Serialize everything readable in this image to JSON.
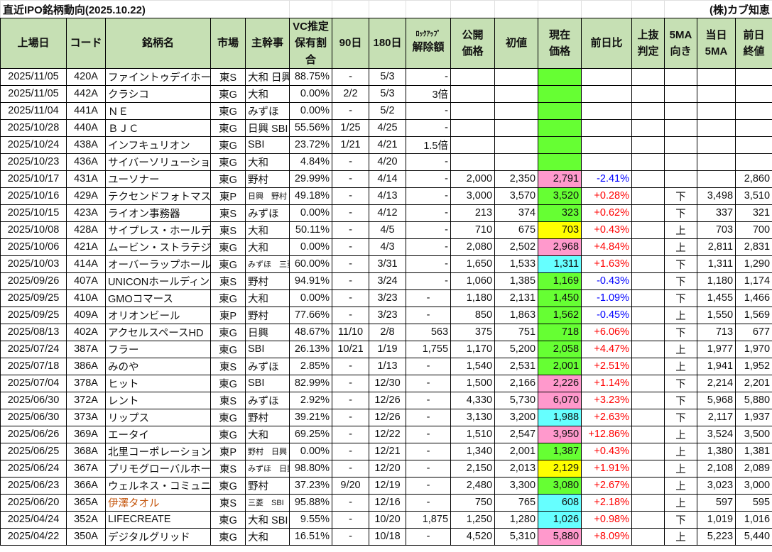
{
  "title": "直近IPO銘柄動向(2025.10.22)",
  "company": "(株)カブ知恵",
  "colors": {
    "header": "#c6e0b4",
    "green": "#66ff33",
    "pink": "#ff99cc",
    "cyan": "#66ffff",
    "yellow": "#ffff00",
    "positive": "#ff0000",
    "negative": "#0000ff",
    "name_highlight": "#c65911"
  },
  "headers": [
    [
      "上場日"
    ],
    [
      "コード"
    ],
    [
      "銘柄名"
    ],
    [
      "市場"
    ],
    [
      "主幹事"
    ],
    [
      "VC推定",
      "保有割合"
    ],
    [
      "90日"
    ],
    [
      "180日"
    ],
    [
      "ﾛｯｸｱｯﾌﾟ",
      "解除額"
    ],
    [
      "公開",
      "価格"
    ],
    [
      "初値"
    ],
    [
      "現在",
      "価格"
    ],
    [
      "前日比"
    ],
    [
      "上抜",
      "判定"
    ],
    [
      "5MA",
      "向き"
    ],
    [
      "当日",
      "5MA"
    ],
    [
      "前日",
      "終値"
    ]
  ],
  "rows": [
    {
      "date": "2025/11/05",
      "code": "420A",
      "name": "ファイントゥデイホールディングス",
      "market": "東S",
      "uw": "大和 日興",
      "vc": "88.75%",
      "d90": "-",
      "d180": "5/3",
      "lock": "-",
      "ipo": "",
      "first": "",
      "price": "",
      "price_fill": "green",
      "chg": "",
      "cross": "",
      "ma_dir": "",
      "ma5": "",
      "prev": ""
    },
    {
      "date": "2025/11/05",
      "code": "442A",
      "name": "クラシコ",
      "market": "東G",
      "uw": "大和",
      "vc": "0.00%",
      "d90": "2/2",
      "d180": "5/3",
      "lock": "3倍",
      "ipo": "",
      "first": "",
      "price": "",
      "price_fill": "green",
      "chg": "",
      "cross": "",
      "ma_dir": "",
      "ma5": "",
      "prev": ""
    },
    {
      "date": "2025/11/04",
      "code": "441A",
      "name": "ＮＥ",
      "market": "東G",
      "uw": "みずほ",
      "vc": "0.00%",
      "d90": "-",
      "d180": "5/2",
      "lock": "-",
      "ipo": "",
      "first": "",
      "price": "",
      "price_fill": "green",
      "chg": "",
      "cross": "",
      "ma_dir": "",
      "ma5": "",
      "prev": ""
    },
    {
      "date": "2025/10/28",
      "code": "440A",
      "name": "ＢＪＣ",
      "market": "東G",
      "uw": "日興 SBI",
      "vc": "55.56%",
      "d90": "1/25",
      "d180": "4/25",
      "lock": "-",
      "ipo": "",
      "first": "",
      "price": "",
      "price_fill": "green",
      "chg": "",
      "cross": "",
      "ma_dir": "",
      "ma5": "",
      "prev": ""
    },
    {
      "date": "2025/10/24",
      "code": "438A",
      "name": "インフキュリオン",
      "market": "東G",
      "uw": "SBI",
      "vc": "23.72%",
      "d90": "1/21",
      "d180": "4/21",
      "lock": "1.5倍",
      "ipo": "",
      "first": "",
      "price": "",
      "price_fill": "green",
      "chg": "",
      "cross": "",
      "ma_dir": "",
      "ma5": "",
      "prev": ""
    },
    {
      "date": "2025/10/23",
      "code": "436A",
      "name": "サイバーソリューションズ",
      "market": "東G",
      "uw": "大和",
      "vc": "4.84%",
      "d90": "-",
      "d180": "4/20",
      "lock": "-",
      "ipo": "",
      "first": "",
      "price": "",
      "price_fill": "green",
      "chg": "",
      "cross": "",
      "ma_dir": "",
      "ma5": "",
      "prev": ""
    },
    {
      "date": "2025/10/17",
      "code": "431A",
      "name": "ユーソナー",
      "market": "東G",
      "uw": "野村",
      "vc": "29.99%",
      "d90": "-",
      "d180": "4/14",
      "lock": "-",
      "ipo": "2,000",
      "first": "2,350",
      "price": "2,791",
      "price_fill": "pink",
      "chg": "-2.41%",
      "cross": "",
      "ma_dir": "",
      "ma5": "",
      "prev": "2,860"
    },
    {
      "date": "2025/10/16",
      "code": "429A",
      "name": "テクセンドフォトマスク",
      "market": "東P",
      "uw": "日興　野村",
      "uw_small": true,
      "vc": "49.18%",
      "d90": "-",
      "d180": "4/13",
      "lock": "-",
      "ipo": "3,000",
      "first": "3,570",
      "price": "3,520",
      "price_fill": "green",
      "chg": "+0.28%",
      "cross": "",
      "ma_dir": "下",
      "ma5": "3,498",
      "prev": "3,510"
    },
    {
      "date": "2025/10/15",
      "code": "423A",
      "name": "ライオン事務器",
      "market": "東S",
      "uw": "みずほ",
      "vc": "0.00%",
      "d90": "-",
      "d180": "4/12",
      "lock": "-",
      "ipo": "213",
      "first": "374",
      "price": "323",
      "price_fill": "green",
      "chg": "+0.62%",
      "cross": "",
      "ma_dir": "下",
      "ma5": "337",
      "prev": "321"
    },
    {
      "date": "2025/10/08",
      "code": "428A",
      "name": "サイプレス・ホールディングス",
      "market": "東S",
      "uw": "大和",
      "vc": "50.11%",
      "d90": "-",
      "d180": "4/5",
      "lock": "-",
      "ipo": "710",
      "first": "675",
      "price": "703",
      "price_fill": "yellow",
      "chg": "+0.43%",
      "cross": "",
      "ma_dir": "上",
      "ma5": "703",
      "prev": "700"
    },
    {
      "date": "2025/10/06",
      "code": "421A",
      "name": "ムービン・ストラテジック",
      "market": "東G",
      "uw": "大和",
      "vc": "0.00%",
      "d90": "-",
      "d180": "4/3",
      "lock": "-",
      "ipo": "2,080",
      "first": "2,502",
      "price": "2,968",
      "price_fill": "pink",
      "chg": "+4.84%",
      "cross": "",
      "ma_dir": "上",
      "ma5": "2,811",
      "prev": "2,831"
    },
    {
      "date": "2025/10/03",
      "code": "414A",
      "name": "オーバーラップホールディングス",
      "market": "東G",
      "uw": "みずほ　三菱",
      "uw_small": true,
      "vc": "60.00%",
      "d90": "-",
      "d180": "3/31",
      "lock": "-",
      "ipo": "1,650",
      "first": "1,533",
      "price": "1,311",
      "price_fill": "cyan",
      "chg": "+1.63%",
      "cross": "",
      "ma_dir": "下",
      "ma5": "1,311",
      "prev": "1,290"
    },
    {
      "date": "2025/09/26",
      "code": "407A",
      "name": "UNICONホールディングス",
      "market": "東S",
      "uw": "野村",
      "vc": "94.91%",
      "d90": "-",
      "d180": "3/24",
      "lock": "-",
      "ipo": "1,060",
      "first": "1,385",
      "price": "1,169",
      "price_fill": "green",
      "chg": "-0.43%",
      "cross": "",
      "ma_dir": "下",
      "ma5": "1,180",
      "prev": "1,174"
    },
    {
      "date": "2025/09/25",
      "code": "410A",
      "name": "GMOコマース",
      "market": "東G",
      "uw": "大和",
      "vc": "0.00%",
      "d90": "-",
      "d180": "3/23",
      "lock": "-",
      "ipo": "1,180",
      "first": "2,131",
      "price": "1,450",
      "price_fill": "green",
      "chg": "-1.09%",
      "cross": "",
      "ma_dir": "下",
      "ma5": "1,455",
      "prev": "1,466"
    },
    {
      "date": "2025/09/25",
      "code": "409A",
      "name": "オリオンビール",
      "market": "東P",
      "uw": "野村",
      "vc": "77.66%",
      "d90": "-",
      "d180": "3/23",
      "lock": "-",
      "ipo": "850",
      "first": "1,863",
      "price": "1,562",
      "price_fill": "green",
      "chg": "-0.45%",
      "cross": "",
      "ma_dir": "上",
      "ma5": "1,550",
      "prev": "1,569"
    },
    {
      "date": "2025/08/13",
      "code": "402A",
      "name": "アクセルスペースHD",
      "market": "東G",
      "uw": "日興",
      "vc": "48.67%",
      "d90": "11/10",
      "d180": "2/8",
      "lock": "563",
      "ipo": "375",
      "first": "751",
      "price": "718",
      "price_fill": "green",
      "chg": "+6.06%",
      "cross": "",
      "ma_dir": "下",
      "ma5": "713",
      "prev": "677"
    },
    {
      "date": "2025/07/24",
      "code": "387A",
      "name": "フラー",
      "market": "東G",
      "uw": "SBI",
      "vc": "26.13%",
      "d90": "10/21",
      "d180": "1/19",
      "lock": "1,755",
      "ipo": "1,170",
      "first": "5,200",
      "price": "2,058",
      "price_fill": "green",
      "chg": "+4.47%",
      "cross": "",
      "ma_dir": "上",
      "ma5": "1,977",
      "prev": "1,970"
    },
    {
      "date": "2025/07/18",
      "code": "386A",
      "name": "みのや",
      "market": "東S",
      "uw": "みずほ",
      "vc": "2.85%",
      "d90": "-",
      "d180": "1/13",
      "lock": "-",
      "ipo": "1,540",
      "first": "2,531",
      "price": "2,001",
      "price_fill": "green",
      "chg": "+2.51%",
      "cross": "",
      "ma_dir": "上",
      "ma5": "1,941",
      "prev": "1,952"
    },
    {
      "date": "2025/07/04",
      "code": "378A",
      "name": "ヒット",
      "market": "東G",
      "uw": "SBI",
      "vc": "82.99%",
      "d90": "-",
      "d180": "12/30",
      "lock": "-",
      "ipo": "1,500",
      "first": "2,166",
      "price": "2,226",
      "price_fill": "pink",
      "chg": "+1.14%",
      "cross": "",
      "ma_dir": "下",
      "ma5": "2,214",
      "prev": "2,201"
    },
    {
      "date": "2025/06/30",
      "code": "372A",
      "name": "レント",
      "market": "東S",
      "uw": "みずほ",
      "vc": "2.92%",
      "d90": "-",
      "d180": "12/26",
      "lock": "-",
      "ipo": "4,330",
      "first": "5,730",
      "price": "6,070",
      "price_fill": "pink",
      "chg": "+3.23%",
      "cross": "",
      "ma_dir": "下",
      "ma5": "5,968",
      "prev": "5,880"
    },
    {
      "date": "2025/06/30",
      "code": "373A",
      "name": "リップス",
      "market": "東G",
      "uw": "野村",
      "vc": "39.21%",
      "d90": "-",
      "d180": "12/26",
      "lock": "-",
      "ipo": "3,130",
      "first": "3,200",
      "price": "1,988",
      "price_fill": "cyan",
      "chg": "+2.63%",
      "cross": "",
      "ma_dir": "下",
      "ma5": "2,117",
      "prev": "1,937"
    },
    {
      "date": "2025/06/26",
      "code": "369A",
      "name": "エータイ",
      "market": "東G",
      "uw": "大和",
      "vc": "69.25%",
      "d90": "-",
      "d180": "12/22",
      "lock": "-",
      "ipo": "1,510",
      "first": "2,547",
      "price": "3,950",
      "price_fill": "pink",
      "chg": "+12.86%",
      "cross": "",
      "ma_dir": "上",
      "ma5": "3,524",
      "prev": "3,500"
    },
    {
      "date": "2025/06/25",
      "code": "368A",
      "name": "北里コーポレーション",
      "market": "東P",
      "uw": "野村　日興",
      "uw_small": true,
      "vc": "0.00%",
      "d90": "-",
      "d180": "12/21",
      "lock": "-",
      "ipo": "1,340",
      "first": "2,001",
      "price": "1,387",
      "price_fill": "green",
      "chg": "+0.43%",
      "cross": "",
      "ma_dir": "上",
      "ma5": "1,380",
      "prev": "1,381"
    },
    {
      "date": "2025/06/24",
      "code": "367A",
      "name": "プリモグローバルホールディングス",
      "market": "東S",
      "uw": "みずほ　日興",
      "uw_small": true,
      "vc": "98.80%",
      "d90": "-",
      "d180": "12/20",
      "lock": "-",
      "ipo": "2,150",
      "first": "2,013",
      "price": "2,129",
      "price_fill": "yellow",
      "chg": "+1.91%",
      "cross": "",
      "ma_dir": "上",
      "ma5": "2,108",
      "prev": "2,089"
    },
    {
      "date": "2025/06/23",
      "code": "366A",
      "name": "ウェルネス・コミュニケーションズ",
      "market": "東G",
      "uw": "野村",
      "vc": "37.23%",
      "d90": "9/20",
      "d180": "12/19",
      "lock": "-",
      "ipo": "2,480",
      "first": "3,300",
      "price": "3,080",
      "price_fill": "green",
      "chg": "+2.67%",
      "cross": "",
      "ma_dir": "上",
      "ma5": "3,023",
      "prev": "3,000"
    },
    {
      "date": "2025/06/20",
      "code": "365A",
      "name": "伊澤タオル",
      "name_highlight": true,
      "market": "東S",
      "uw": "三菱　SBI",
      "uw_small": true,
      "vc": "95.88%",
      "d90": "-",
      "d180": "12/16",
      "lock": "-",
      "ipo": "750",
      "first": "765",
      "price": "608",
      "price_fill": "cyan",
      "chg": "+2.18%",
      "cross": "",
      "ma_dir": "上",
      "ma5": "597",
      "prev": "595"
    },
    {
      "date": "2025/04/24",
      "code": "352A",
      "name": "LIFECREATE",
      "market": "東G",
      "uw": "大和 SBI",
      "vc": "9.55%",
      "d90": "-",
      "d180": "10/20",
      "lock": "1,875",
      "ipo": "1,250",
      "first": "1,280",
      "price": "1,026",
      "price_fill": "cyan",
      "chg": "+0.98%",
      "cross": "",
      "ma_dir": "下",
      "ma5": "1,019",
      "prev": "1,016"
    },
    {
      "date": "2025/04/22",
      "code": "350A",
      "name": "デジタルグリッド",
      "market": "東G",
      "uw": "大和",
      "vc": "16.51%",
      "d90": "-",
      "d180": "10/18",
      "lock": "-",
      "ipo": "4,520",
      "first": "5,310",
      "price": "5,880",
      "price_fill": "pink",
      "chg": "+8.09%",
      "cross": "",
      "ma_dir": "上",
      "ma5": "5,223",
      "prev": "5,440"
    }
  ]
}
